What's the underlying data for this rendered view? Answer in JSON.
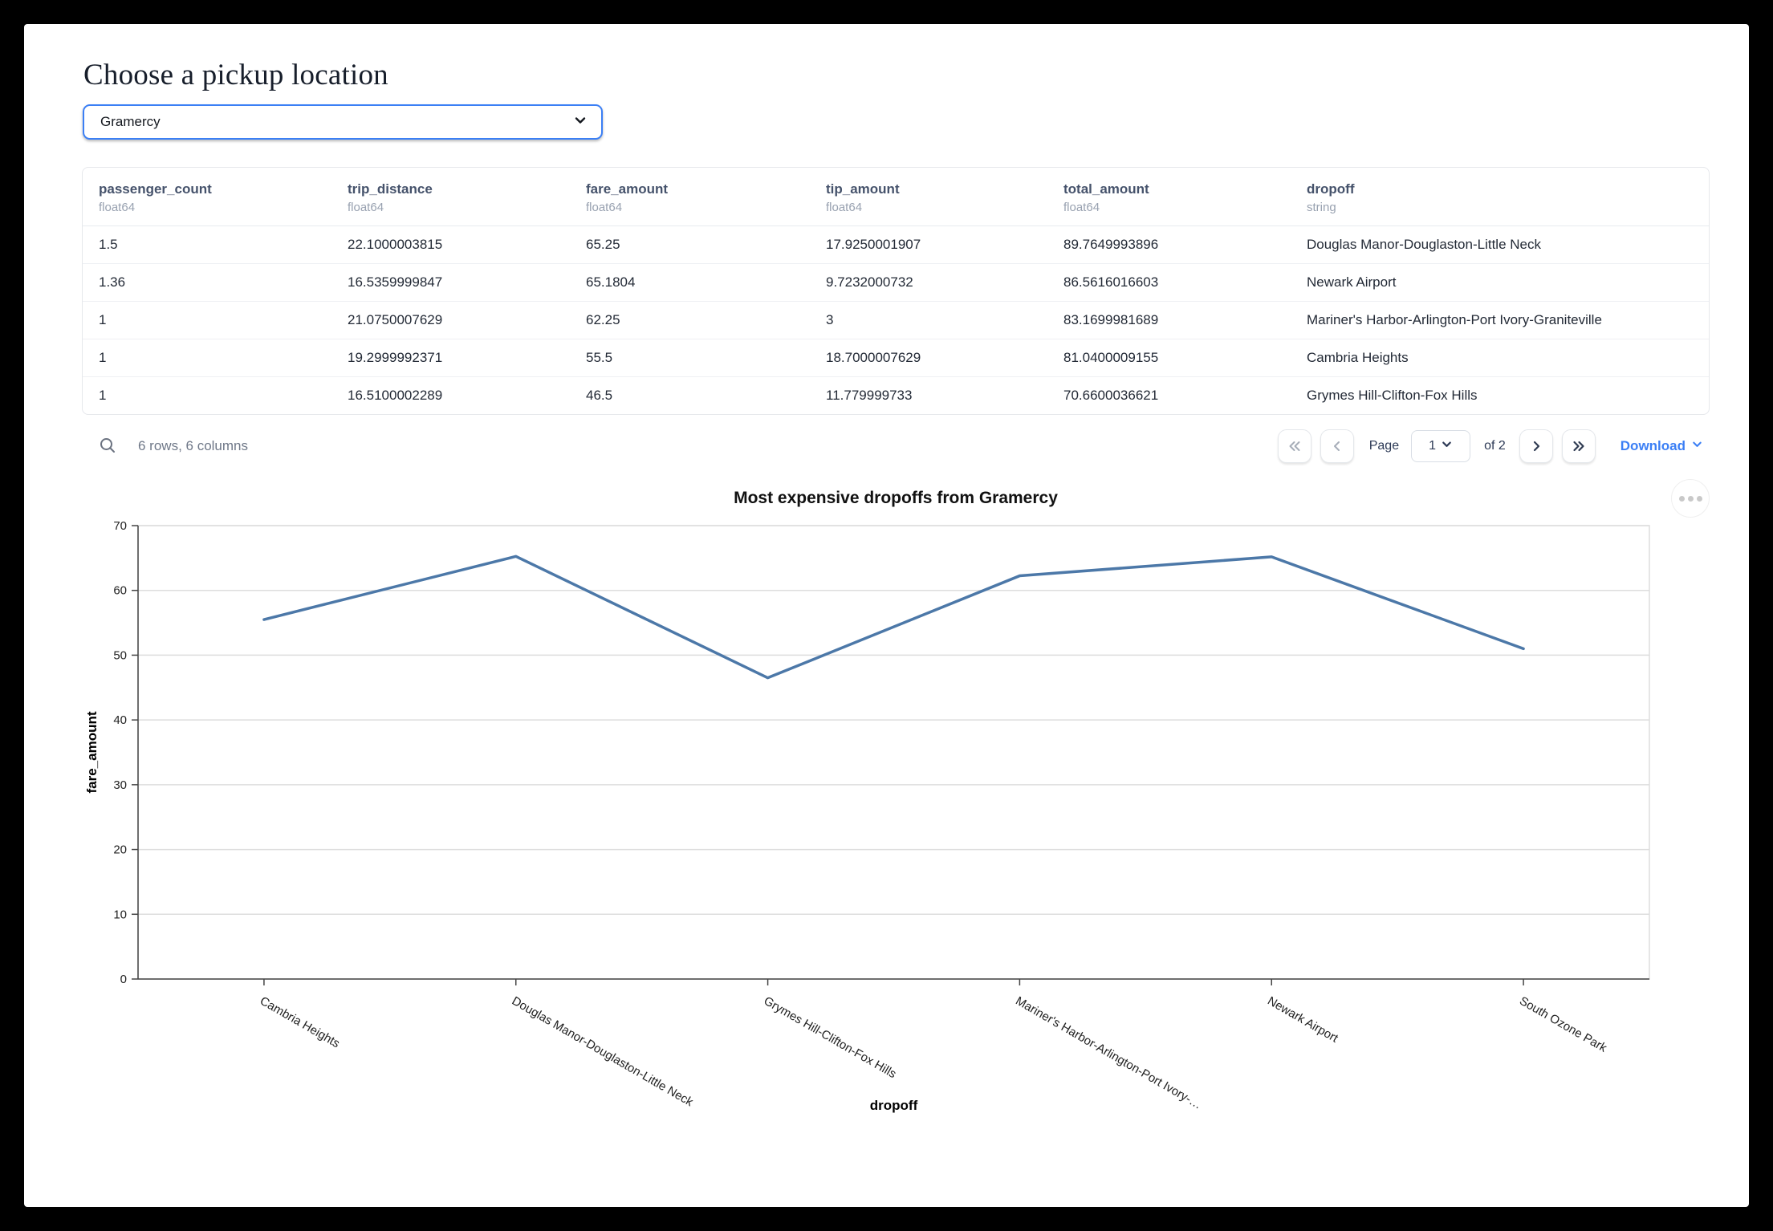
{
  "header": {
    "title": "Choose a pickup location"
  },
  "pickup_select": {
    "value": "Gramercy"
  },
  "colors": {
    "accent_blue": "#3b7ff5",
    "chart_line": "#4c78a8",
    "select_border": "#3b7ff5"
  },
  "icons": {
    "search": "magnifier-icon",
    "select_chevron": "chevron-down-icon",
    "page_select_chevron": "chevron-down-icon",
    "download_chevron": "chevron-down-icon",
    "first_page": "double-chevron-left-icon",
    "prev_page": "chevron-left-icon",
    "next_page": "chevron-right-icon",
    "last_page": "double-chevron-right-icon",
    "chart_menu": "ellipsis-icon"
  },
  "table": {
    "columns": [
      {
        "name": "passenger_count",
        "dtype": "float64"
      },
      {
        "name": "trip_distance",
        "dtype": "float64"
      },
      {
        "name": "fare_amount",
        "dtype": "float64"
      },
      {
        "name": "tip_amount",
        "dtype": "float64"
      },
      {
        "name": "total_amount",
        "dtype": "float64"
      },
      {
        "name": "dropoff",
        "dtype": "string"
      }
    ],
    "rows": [
      [
        "1.5",
        "22.1000003815",
        "65.25",
        "17.9250001907",
        "89.7649993896",
        "Douglas Manor-Douglaston-Little Neck"
      ],
      [
        "1.36",
        "16.5359999847",
        "65.1804",
        "9.7232000732",
        "86.5616016603",
        "Newark Airport"
      ],
      [
        "1",
        "21.0750007629",
        "62.25",
        "3",
        "83.1699981689",
        "Mariner's Harbor-Arlington-Port Ivory-Graniteville"
      ],
      [
        "1",
        "19.2999992371",
        "55.5",
        "18.7000007629",
        "81.0400009155",
        "Cambria Heights"
      ],
      [
        "1",
        "16.5100002289",
        "46.5",
        "11.779999733",
        "70.6600036621",
        "Grymes Hill-Clifton-Fox Hills"
      ]
    ]
  },
  "table_footer": {
    "summary": "6 rows, 6 columns",
    "page_label": "Page",
    "page_value": "1",
    "of_label": "of 2",
    "download_label": "Download"
  },
  "chart_data": {
    "type": "line",
    "title": "Most expensive dropoffs from Gramercy",
    "xlabel": "dropoff",
    "ylabel": "fare_amount",
    "ylim": [
      0,
      70
    ],
    "yticks": [
      0,
      10,
      20,
      30,
      40,
      50,
      60,
      70
    ],
    "categories": [
      "Cambria Heights",
      "Douglas Manor-Douglaston-Little Neck",
      "Grymes Hill-Clifton-Fox Hills",
      "Mariner's Harbor-Arlington-Port Ivory-…",
      "Newark Airport",
      "South Ozone Park"
    ],
    "values": [
      55.5,
      65.25,
      46.5,
      62.25,
      65.1804,
      51
    ],
    "line_color": "#4c78a8",
    "grid": true,
    "legend": "none",
    "x_label_angle": 30
  }
}
